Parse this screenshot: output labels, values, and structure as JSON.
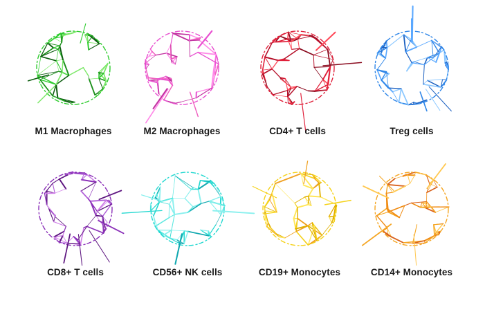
{
  "cells": [
    {
      "label": "M1 Macrophages",
      "colors": [
        "#2ecc2e",
        "#7de86a",
        "#1a8f1a",
        "#0f5f12"
      ]
    },
    {
      "label": "M2 Macrophages",
      "colors": [
        "#e84fd0",
        "#ff8ae8",
        "#c0309f",
        "#f060c0"
      ]
    },
    {
      "label": "CD4+ T cells",
      "colors": [
        "#e0203a",
        "#b5102a",
        "#ff4a5a",
        "#8a0a1e"
      ]
    },
    {
      "label": "Treg cells",
      "colors": [
        "#2f86e8",
        "#5aa8ff",
        "#1a5fc0",
        "#8cc8ff"
      ]
    },
    {
      "label": "CD8+ T cells",
      "colors": [
        "#8a2fb8",
        "#b060d8",
        "#5e1680",
        "#d080e8"
      ]
    },
    {
      "label": "CD56+ NK cells",
      "colors": [
        "#22d8d0",
        "#5ae8e0",
        "#12a8b0",
        "#8af0ee"
      ]
    },
    {
      "label": "CD19+ Monocytes",
      "colors": [
        "#f5d21a",
        "#ffe65a",
        "#e0b000",
        "#f0a020"
      ]
    },
    {
      "label": "CD14+ Monocytes",
      "colors": [
        "#f5a623",
        "#f08a10",
        "#ffc850",
        "#d8601a"
      ]
    }
  ]
}
